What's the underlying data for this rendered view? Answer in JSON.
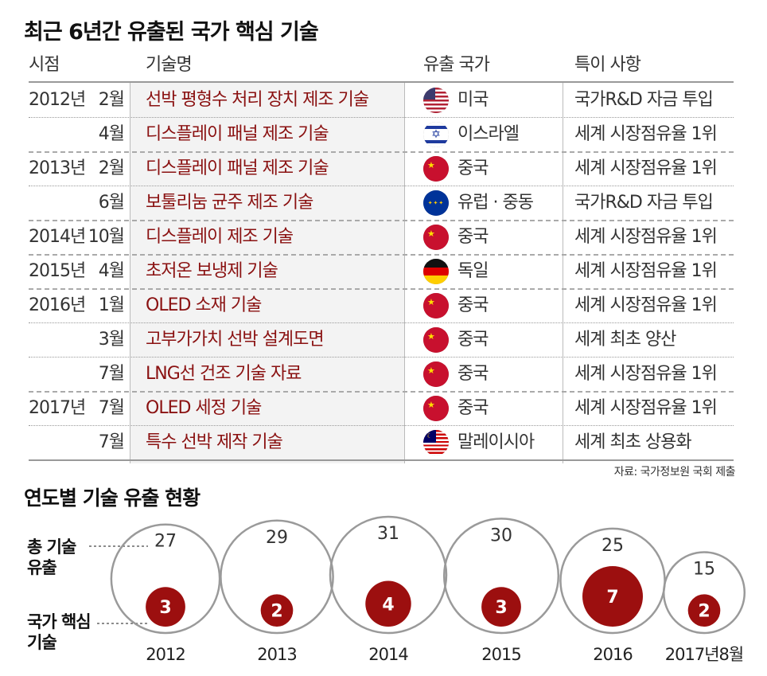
{
  "title": "최근 6년간 유출된 국가 핵심 기술",
  "table": {
    "headers": {
      "time": "시점",
      "tech": "기술명",
      "country": "유출 국가",
      "note": "특이 사항"
    },
    "rows": [
      {
        "year": "2012년",
        "month": "2월",
        "tech": "선박 평형수 처리 장치 제조 기술",
        "country": "미국",
        "flag": "us-flag-icon",
        "note": "국가R&D 자금 투입"
      },
      {
        "year": "",
        "month": "4월",
        "tech": "디스플레이 패널 제조 기술",
        "country": "이스라엘",
        "flag": "israel-flag-icon",
        "note": "세계 시장점유율 1위"
      },
      {
        "year": "2013년",
        "month": "2월",
        "tech": "디스플레이 패널 제조 기술",
        "country": "중국",
        "flag": "china-flag-icon",
        "note": "세계 시장점유율 1위"
      },
      {
        "year": "",
        "month": "6월",
        "tech": "보툴리눔 균주 제조 기술",
        "country": "유럽 · 중동",
        "flag": "eu-flag-icon",
        "note": "국가R&D 자금 투입"
      },
      {
        "year": "2014년",
        "month": "10월",
        "tech": "디스플레이 제조 기술",
        "country": "중국",
        "flag": "china-flag-icon",
        "note": "세계 시장점유율 1위"
      },
      {
        "year": "2015년",
        "month": "4월",
        "tech": "초저온 보냉제 기술",
        "country": "독일",
        "flag": "germany-flag-icon",
        "note": "세계 시장점유율 1위"
      },
      {
        "year": "2016년",
        "month": "1월",
        "tech": "OLED 소재 기술",
        "country": "중국",
        "flag": "china-flag-icon",
        "note": "세계 시장점유율 1위"
      },
      {
        "year": "",
        "month": "3월",
        "tech": "고부가가치 선박 설계도면",
        "country": "중국",
        "flag": "china-flag-icon",
        "note": "세계 최초 양산"
      },
      {
        "year": "",
        "month": "7월",
        "tech": "LNG선 건조 기술 자료",
        "country": "중국",
        "flag": "china-flag-icon",
        "note": "세계 시장점유율 1위"
      },
      {
        "year": "2017년",
        "month": "7월",
        "tech": "OLED 세정 기술",
        "country": "중국",
        "flag": "china-flag-icon",
        "note": "세계 시장점유율 1위"
      },
      {
        "year": "",
        "month": "7월",
        "tech": "특수 선박 제작 기술",
        "country": "말레이시아",
        "flag": "malaysia-flag-icon",
        "note": "세계 최초 상용화"
      }
    ],
    "source": "자료: 국가정보원 국회 제출"
  },
  "chart_section": {
    "title": "연도별 기술 유출 현황",
    "label_total": "총 기술 유출",
    "label_core": "국가 핵심 기술"
  },
  "chart_data": {
    "type": "bubble",
    "categories": [
      "2012",
      "2013",
      "2014",
      "2015",
      "2016",
      "2017년8월"
    ],
    "series": [
      {
        "name": "총 기술 유출",
        "values": [
          27,
          29,
          31,
          30,
          25,
          15
        ]
      },
      {
        "name": "국가 핵심 기술",
        "values": [
          3,
          2,
          4,
          3,
          7,
          2
        ]
      }
    ],
    "colors": {
      "total_stroke": "#9a9a9a",
      "core_fill": "#9c0f0f"
    }
  }
}
